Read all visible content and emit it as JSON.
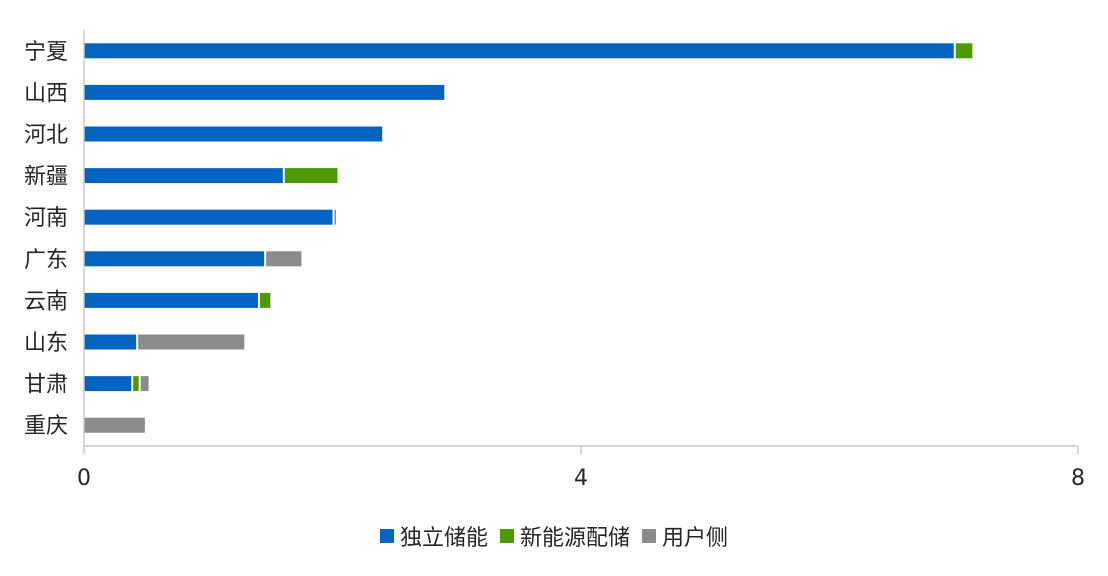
{
  "chart_data": {
    "type": "bar",
    "orientation": "horizontal",
    "stacked": true,
    "categories": [
      "宁夏",
      "山西",
      "河北",
      "新疆",
      "河南",
      "广东",
      "云南",
      "山东",
      "甘肃",
      "重庆"
    ],
    "series": [
      {
        "name": "独立储能",
        "color": "#0563C1",
        "values": [
          7.0,
          2.9,
          2.4,
          1.6,
          2.0,
          1.45,
          1.4,
          0.42,
          0.38,
          0
        ]
      },
      {
        "name": "新能源配储",
        "color": "#4E9A06",
        "values": [
          0.15,
          0,
          0,
          0.44,
          0,
          0,
          0.1,
          0,
          0.06,
          0
        ]
      },
      {
        "name": "用户侧",
        "color": "#8C8C8C",
        "values": [
          0,
          0,
          0,
          0,
          0.02,
          0.3,
          0,
          0.87,
          0.08,
          0.49
        ]
      }
    ],
    "xlim": [
      0,
      8
    ],
    "xticks": [
      "0",
      "4",
      "8"
    ],
    "grid": false,
    "legend_position": "bottom"
  }
}
